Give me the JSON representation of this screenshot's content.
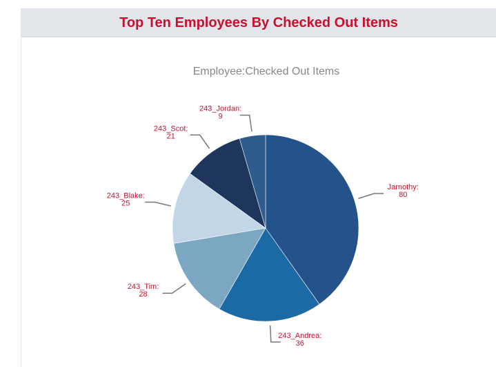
{
  "header": {
    "title": "Top Ten Employees By Checked Out Items"
  },
  "chart_data": {
    "type": "pie",
    "title": "Employee:Checked Out Items",
    "categories": [
      "Jarnothy:",
      "243_Andrea:",
      "243_Tim:",
      "243_Blake:",
      "243_Scot:",
      "243_Jordan:"
    ],
    "values": [
      80,
      36,
      28,
      25,
      21,
      9
    ],
    "colors": [
      "#24528a",
      "#1b6aa6",
      "#7ba7c3",
      "#c3d6e8",
      "#1e355c",
      "#2f5c8d"
    ]
  }
}
